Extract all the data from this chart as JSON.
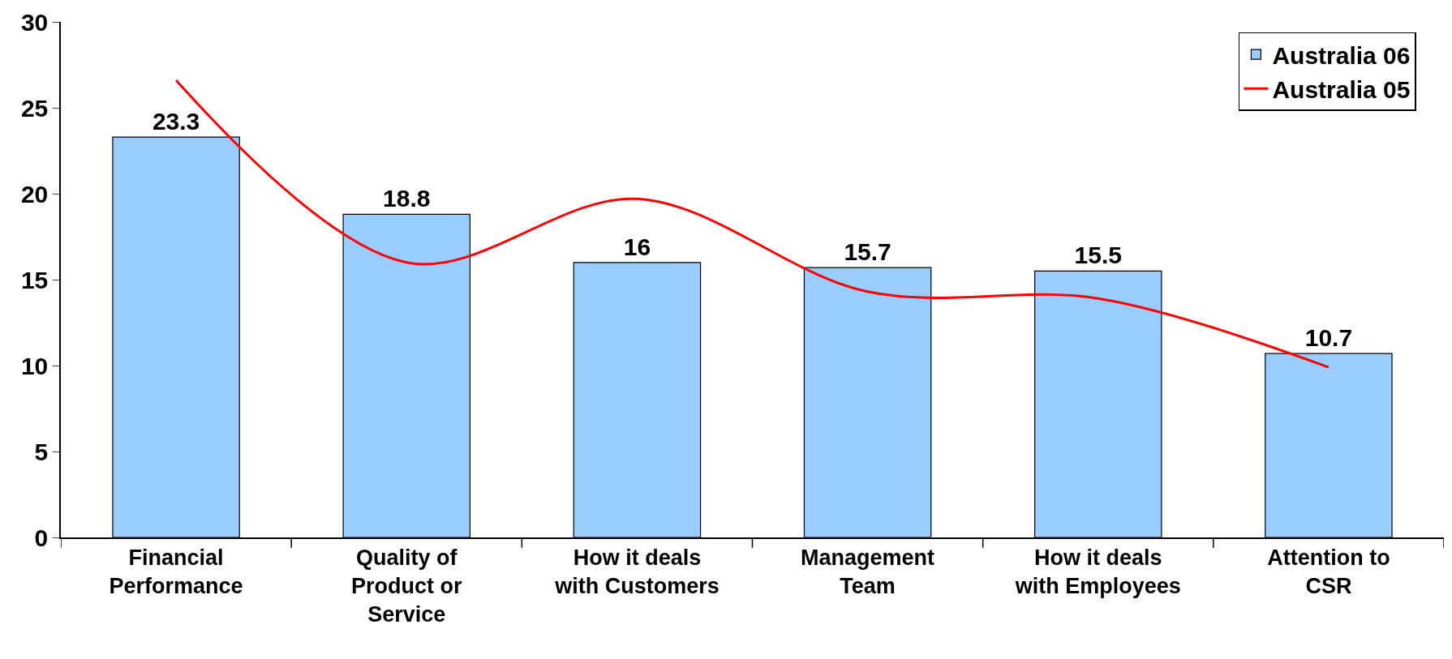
{
  "chart_data": {
    "type": "bar",
    "categories": [
      "Financial Performance",
      "Quality of Product or Service",
      "How it deals with Customers",
      "Management Team",
      "How it deals with Employees",
      "Attention to CSR"
    ],
    "series": [
      {
        "name": "Australia 06",
        "color": "#99ccff",
        "values": [
          23.3,
          18.8,
          16,
          15.7,
          15.5,
          10.7
        ],
        "value_labels": [
          "23.3",
          "18.8",
          "16",
          "15.7",
          "15.5",
          "10.7"
        ]
      },
      {
        "name": "Australia 05",
        "type": "line",
        "color": "#ff0000",
        "values": [
          26.6,
          16.0,
          19.7,
          14.3,
          13.9,
          9.9
        ],
        "marker": "none",
        "line_style": "solid"
      }
    ],
    "ylim": [
      0,
      30
    ],
    "yticks": [
      0,
      5,
      10,
      15,
      20,
      25,
      30
    ],
    "legend": "top right"
  }
}
